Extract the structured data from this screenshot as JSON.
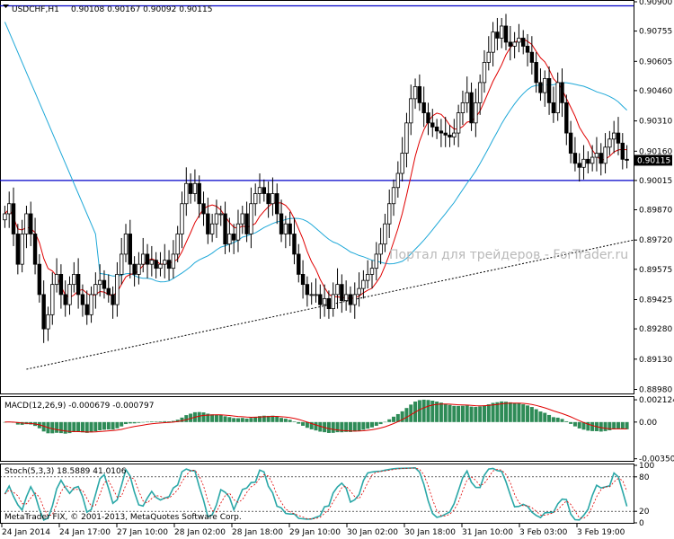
{
  "header": {
    "symbol": "USDCHF,H1",
    "ohlc": "0.90108 0.90167 0.90092 0.90115"
  },
  "watermark": "Портал для трейдеров - ForTrader.ru",
  "footer": "MetaTrader FIX, © 2001-2013, MetaQuotes Software Corp.",
  "colors": {
    "bull_body": "#ffffff",
    "bear_body": "#000000",
    "ma_fast": "#e00000",
    "ma_slow": "#1ea8d8",
    "level_line": "#0000c8",
    "macd_hist": "#2e8b57",
    "macd_signal": "#e00000",
    "stoch_main": "#2aa7a7",
    "stoch_signal": "#e00000",
    "price_tag_bg": "#000000"
  },
  "chart_data": {
    "type": "candlestick",
    "price_axis_ticks": [
      "0.90900",
      "0.90755",
      "0.90605",
      "0.90460",
      "0.90310",
      "0.90160",
      "0.90015",
      "0.89870",
      "0.89720",
      "0.89575",
      "0.89425",
      "0.89280",
      "0.89130",
      "0.88980"
    ],
    "price_range": [
      0.8896,
      0.909
    ],
    "current_price": "0.90115",
    "horizontal_levels": [
      0.9088,
      0.90015
    ],
    "trendline": {
      "from": [
        0.8908,
        "24 Jan 2014"
      ],
      "to": [
        0.8972,
        "3 Feb 19:00"
      ]
    },
    "time_labels": [
      "24 Jan 2014",
      "24 Jan 17:00",
      "27 Jan 10:00",
      "28 Jan 02:00",
      "28 Jan 18:00",
      "29 Jan 10:00",
      "30 Jan 02:00",
      "30 Jan 18:00",
      "31 Jan 10:00",
      "3 Feb 03:00",
      "3 Feb 19:00"
    ],
    "closes": [
      0.8985,
      0.899,
      0.8975,
      0.896,
      0.8975,
      0.8985,
      0.8975,
      0.896,
      0.8945,
      0.8928,
      0.8935,
      0.895,
      0.8955,
      0.8945,
      0.894,
      0.895,
      0.8955,
      0.8945,
      0.894,
      0.8935,
      0.8945,
      0.895,
      0.8952,
      0.8948,
      0.8945,
      0.894,
      0.8955,
      0.8965,
      0.8975,
      0.896,
      0.8955,
      0.896,
      0.8965,
      0.896,
      0.8962,
      0.8958,
      0.896,
      0.8962,
      0.8958,
      0.8965,
      0.8975,
      0.899,
      0.9,
      0.8995,
      0.9,
      0.899,
      0.8985,
      0.8975,
      0.898,
      0.8985,
      0.8985,
      0.897,
      0.8975,
      0.8972,
      0.898,
      0.8985,
      0.8975,
      0.899,
      0.8995,
      0.8998,
      0.8995,
      0.899,
      0.8995,
      0.8985,
      0.8975,
      0.898,
      0.8975,
      0.8965,
      0.8955,
      0.895,
      0.8945,
      0.8945,
      0.8945,
      0.894,
      0.8943,
      0.8938,
      0.8945,
      0.895,
      0.8942,
      0.8945,
      0.894,
      0.8945,
      0.8948,
      0.8952,
      0.8955,
      0.8958,
      0.8965,
      0.897,
      0.898,
      0.899,
      0.8998,
      0.9005,
      0.9015,
      0.903,
      0.9042,
      0.9048,
      0.904,
      0.9035,
      0.903,
      0.9028,
      0.9026,
      0.9025,
      0.9024,
      0.9023,
      0.9025,
      0.9035,
      0.904,
      0.9045,
      0.903,
      0.904,
      0.905,
      0.906,
      0.9065,
      0.9075,
      0.9072,
      0.9078,
      0.907,
      0.9068,
      0.907,
      0.9072,
      0.9068,
      0.9065,
      0.906,
      0.905,
      0.9045,
      0.9052,
      0.904,
      0.9035,
      0.905,
      0.904,
      0.9025,
      0.9015,
      0.901,
      0.9008,
      0.9012,
      0.901,
      0.9013,
      0.9015,
      0.901,
      0.9018,
      0.9022,
      0.9025,
      0.902,
      0.9012,
      0.90115
    ],
    "macd": {
      "label": "MACD(12,26,9) -0.000679 -0.000797",
      "ticks": [
        "0.002124",
        "0.00",
        "-0.003502"
      ],
      "range": [
        -0.0037,
        0.0023
      ]
    },
    "stochastic": {
      "label": "Stoch(5,3,3) 18.5889 41.0106",
      "ticks": [
        "100",
        "80",
        "20",
        "0"
      ],
      "range": [
        0,
        100
      ]
    }
  }
}
